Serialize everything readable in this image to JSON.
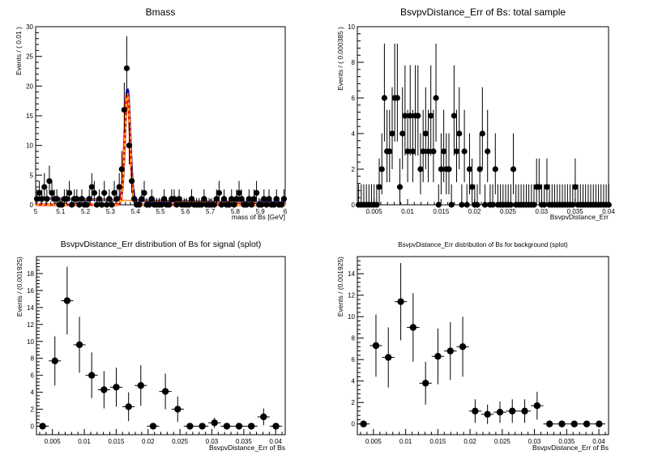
{
  "chart_data": [
    {
      "type": "scatter",
      "title": "Bmass",
      "xlabel": "mass of Bs [GeV]",
      "ylabel": "Events / ( 0.01 )",
      "xlim": [
        5.0,
        6.0
      ],
      "ylim": [
        0,
        30
      ],
      "xticks": [
        5.0,
        5.1,
        5.2,
        5.3,
        5.4,
        5.5,
        5.6,
        5.7,
        5.8,
        5.9,
        6.0
      ],
      "xtick_labels": [
        "5",
        "5.1",
        "5.2",
        "5.3",
        "5.4",
        "5.5",
        "5.6",
        "5.7",
        "5.8",
        "5.9",
        "6"
      ],
      "yticks": [
        0,
        5,
        10,
        15,
        20,
        25,
        30
      ],
      "grid": false,
      "x": [
        5.005,
        5.015,
        5.025,
        5.035,
        5.045,
        5.055,
        5.065,
        5.075,
        5.085,
        5.095,
        5.105,
        5.115,
        5.125,
        5.135,
        5.145,
        5.155,
        5.165,
        5.175,
        5.185,
        5.195,
        5.205,
        5.215,
        5.225,
        5.235,
        5.245,
        5.255,
        5.265,
        5.275,
        5.285,
        5.295,
        5.305,
        5.315,
        5.325,
        5.335,
        5.345,
        5.355,
        5.365,
        5.375,
        5.385,
        5.395,
        5.405,
        5.415,
        5.425,
        5.435,
        5.445,
        5.455,
        5.465,
        5.475,
        5.485,
        5.495,
        5.505,
        5.515,
        5.525,
        5.535,
        5.545,
        5.555,
        5.565,
        5.575,
        5.585,
        5.595,
        5.605,
        5.615,
        5.625,
        5.635,
        5.645,
        5.655,
        5.665,
        5.675,
        5.685,
        5.695,
        5.705,
        5.715,
        5.725,
        5.735,
        5.745,
        5.755,
        5.765,
        5.775,
        5.785,
        5.795,
        5.805,
        5.815,
        5.825,
        5.835,
        5.845,
        5.855,
        5.865,
        5.875,
        5.885,
        5.895,
        5.905,
        5.915,
        5.925,
        5.935,
        5.945,
        5.955,
        5.965,
        5.975,
        5.985,
        5.995
      ],
      "y": [
        1,
        2,
        1,
        3,
        1,
        4,
        2,
        1,
        1,
        0,
        0,
        1,
        1,
        2,
        0,
        1,
        1,
        0,
        1,
        0,
        0,
        1,
        3,
        2,
        0,
        1,
        0,
        2,
        0,
        1,
        0,
        2,
        1,
        3,
        6,
        16,
        23,
        10,
        4,
        1,
        0,
        0,
        1,
        2,
        0,
        0,
        1,
        0,
        0,
        0,
        0,
        1,
        0,
        0,
        1,
        1,
        0,
        1,
        0,
        0,
        0,
        0,
        1,
        0,
        0,
        0,
        0,
        1,
        0,
        0,
        0,
        0,
        1,
        2,
        0,
        1,
        0,
        0,
        1,
        0,
        1,
        2,
        1,
        0,
        0,
        1,
        0,
        1,
        2,
        0,
        0,
        1,
        0,
        1,
        0,
        0,
        1,
        0,
        0,
        1
      ],
      "series": [
        {
          "kind": "points",
          "color": "#000000"
        },
        {
          "kind": "curve",
          "role": "total",
          "color": "#0000ff",
          "style": "solid"
        },
        {
          "kind": "curve",
          "role": "signal",
          "color": "#ff0000",
          "style": "solid"
        },
        {
          "kind": "curve",
          "role": "signal-component",
          "color": "#ffc000",
          "style": "dashed"
        },
        {
          "kind": "curve",
          "role": "background",
          "color": "#ff8c00",
          "style": "solid"
        }
      ]
    },
    {
      "type": "scatter",
      "title": "BsvpvDistance_Err of Bs: total sample",
      "xlabel": "BsvpvDistance_Err",
      "ylabel": "Events / ( 0.000385 )",
      "xlim": [
        0.0025,
        0.04
      ],
      "ylim": [
        0,
        10
      ],
      "xticks": [
        0.005,
        0.01,
        0.015,
        0.02,
        0.025,
        0.03,
        0.035,
        0.04
      ],
      "xtick_labels": [
        "0.005",
        "0.01",
        "0.015",
        "0.02",
        "0.025",
        "0.03",
        "0.035",
        "0.04"
      ],
      "yticks": [
        0,
        2,
        4,
        6,
        8,
        10
      ],
      "grid": false,
      "x": [
        0.00269,
        0.00308,
        0.00346,
        0.00385,
        0.00423,
        0.00462,
        0.005,
        0.00539,
        0.00577,
        0.00616,
        0.00654,
        0.00693,
        0.00731,
        0.0077,
        0.00808,
        0.00847,
        0.00885,
        0.00924,
        0.00962,
        0.01001,
        0.01039,
        0.01078,
        0.01116,
        0.01155,
        0.01193,
        0.01232,
        0.0127,
        0.01309,
        0.01347,
        0.01386,
        0.01424,
        0.01463,
        0.01501,
        0.0154,
        0.01578,
        0.01617,
        0.01655,
        0.01694,
        0.01732,
        0.01771,
        0.01809,
        0.01848,
        0.01886,
        0.01925,
        0.01963,
        0.02002,
        0.0204,
        0.02079,
        0.02117,
        0.02156,
        0.02194,
        0.02233,
        0.02271,
        0.0231,
        0.02348,
        0.02387,
        0.02425,
        0.02464,
        0.02502,
        0.02541,
        0.02579,
        0.02618,
        0.02656,
        0.02695,
        0.02733,
        0.02772,
        0.0281,
        0.02849,
        0.02887,
        0.02926,
        0.02964,
        0.03003,
        0.03041,
        0.0308,
        0.03118,
        0.03157,
        0.03195,
        0.03234,
        0.03272,
        0.03311,
        0.03349,
        0.03388,
        0.03426,
        0.03465,
        0.03503,
        0.03542,
        0.0358,
        0.03619,
        0.03657,
        0.03696,
        0.03734,
        0.03773,
        0.03811,
        0.0385,
        0.03888,
        0.03927,
        0.03965,
        0.04004
      ],
      "y": [
        0,
        0,
        0,
        0,
        0,
        0,
        0,
        0,
        1,
        2,
        6,
        3,
        3,
        4,
        6,
        6,
        1,
        4,
        5,
        3,
        5,
        3,
        5,
        5,
        2,
        3,
        4,
        3,
        5,
        3,
        6,
        0,
        2,
        3,
        2,
        2,
        0,
        5,
        3,
        4,
        0,
        3,
        0,
        2,
        1,
        0,
        0,
        2,
        4,
        0,
        3,
        0,
        0,
        2,
        0,
        0,
        0,
        0,
        0,
        0,
        2,
        0,
        0,
        0,
        0,
        0,
        0,
        0,
        0,
        1,
        1,
        0,
        0,
        1,
        0,
        0,
        0,
        0,
        0,
        0,
        0,
        0,
        0,
        0,
        1,
        0,
        0,
        0,
        0,
        0,
        0,
        0,
        0,
        0,
        0,
        0,
        0,
        0
      ]
    },
    {
      "type": "scatter",
      "title": "BsvpvDistance_Err distribution of Bs for signal (splot)",
      "xlabel": "BsvpvDistance_Err of Bs",
      "ylabel": "Events / (0.001925)",
      "xlim": [
        0.0025,
        0.0415
      ],
      "ylim": [
        -1,
        20
      ],
      "xticks": [
        0.005,
        0.01,
        0.015,
        0.02,
        0.025,
        0.03,
        0.035,
        0.04
      ],
      "xtick_labels": [
        "0.005",
        "0.01",
        "0.015",
        "0.02",
        "0.025",
        "0.03",
        "0.035",
        "0.04"
      ],
      "yticks": [
        0,
        2,
        4,
        6,
        8,
        10,
        12,
        14,
        16,
        18
      ],
      "grid": false,
      "x": [
        0.00346,
        0.00539,
        0.00731,
        0.00924,
        0.01116,
        0.01309,
        0.01501,
        0.01694,
        0.01886,
        0.02079,
        0.02271,
        0.02464,
        0.02656,
        0.02849,
        0.03041,
        0.03234,
        0.03426,
        0.03619,
        0.03811,
        0.04004
      ],
      "y": [
        0,
        7.7,
        14.8,
        9.6,
        6.0,
        4.3,
        4.6,
        2.3,
        4.8,
        0,
        4.1,
        2.0,
        0,
        0,
        0.4,
        0,
        0,
        0,
        1.1,
        0
      ],
      "yerr": [
        0.2,
        2.9,
        4.0,
        3.3,
        2.7,
        2.2,
        2.3,
        1.7,
        2.4,
        0.2,
        2.1,
        1.5,
        0.2,
        0.2,
        0.6,
        0.2,
        0.2,
        0.2,
        1.0,
        0.2
      ]
    },
    {
      "type": "scatter",
      "title": "BsvpvDistance_Err distribution of Bs for background (splot)",
      "xlabel": "BsvpvDistance_Err of Bs",
      "ylabel": "Events / (0.001925)",
      "xlim": [
        0.0025,
        0.0415
      ],
      "ylim": [
        -1,
        15.6
      ],
      "xticks": [
        0.005,
        0.01,
        0.015,
        0.02,
        0.025,
        0.03,
        0.035,
        0.04
      ],
      "xtick_labels": [
        "0.005",
        "0.01",
        "0.015",
        "0.02",
        "0.025",
        "0.03",
        "0.035",
        "0.04"
      ],
      "yticks": [
        0,
        2,
        4,
        6,
        8,
        10,
        12,
        14
      ],
      "grid": false,
      "x": [
        0.00346,
        0.00539,
        0.00731,
        0.00924,
        0.01116,
        0.01309,
        0.01501,
        0.01694,
        0.01886,
        0.02079,
        0.02271,
        0.02464,
        0.02656,
        0.02849,
        0.03041,
        0.03234,
        0.03426,
        0.03619,
        0.03811,
        0.04004
      ],
      "y": [
        0,
        7.3,
        6.2,
        11.4,
        9.0,
        3.8,
        6.3,
        6.8,
        7.2,
        1.2,
        0.9,
        1.1,
        1.2,
        1.2,
        1.7,
        0,
        0,
        0,
        0,
        0
      ],
      "yerr": [
        0.2,
        2.9,
        2.8,
        3.6,
        3.2,
        2.0,
        2.6,
        2.7,
        2.8,
        1.1,
        0.9,
        1.0,
        1.1,
        1.1,
        1.3,
        0.2,
        0.2,
        0.2,
        0.2,
        0.2
      ]
    }
  ]
}
